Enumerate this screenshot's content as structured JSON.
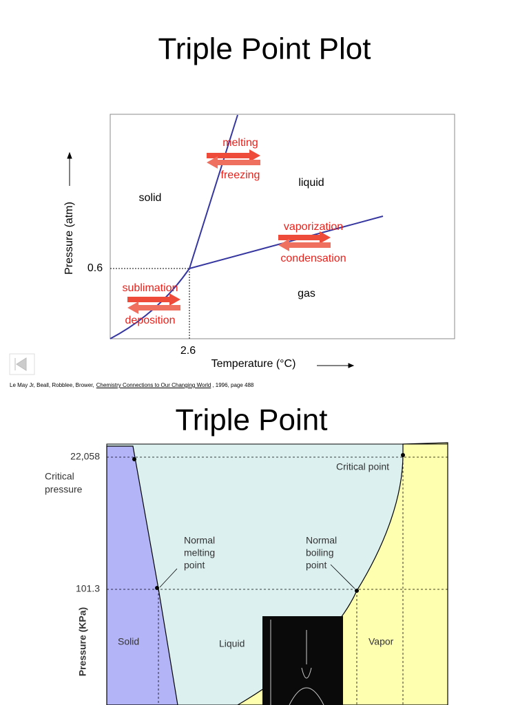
{
  "slides": [
    {
      "title": "Triple Point Plot",
      "y_axis_label": "Pressure (atm)",
      "x_axis_label": "Temperature (°C)",
      "tick_labels": [
        "0.6",
        "2.6"
      ],
      "phase_labels": [
        "solid",
        "liquid",
        "gas"
      ],
      "transition_labels": [
        "melting",
        "freezing",
        "vaporization",
        "condensation",
        "sublimation",
        "deposition"
      ],
      "citation": {
        "authors": "Le May Jr, Beall, Robblee, Brower,",
        "book": "Chemistry Connections to Our Changing World",
        "details": ", 1996, page 488"
      }
    },
    {
      "title": "Triple Point",
      "y_axis_label": "Pressure (KPa)",
      "tick_labels": [
        "22,058",
        "101.3"
      ],
      "annotations": [
        [
          "Critical",
          "pressure"
        ],
        [
          "Critical point"
        ],
        [
          "Normal",
          "melting",
          "point"
        ],
        [
          "Normal",
          "boiling",
          "point"
        ]
      ],
      "phase_labels": [
        "Solid",
        "Liquid",
        "Vapor"
      ]
    }
  ]
}
